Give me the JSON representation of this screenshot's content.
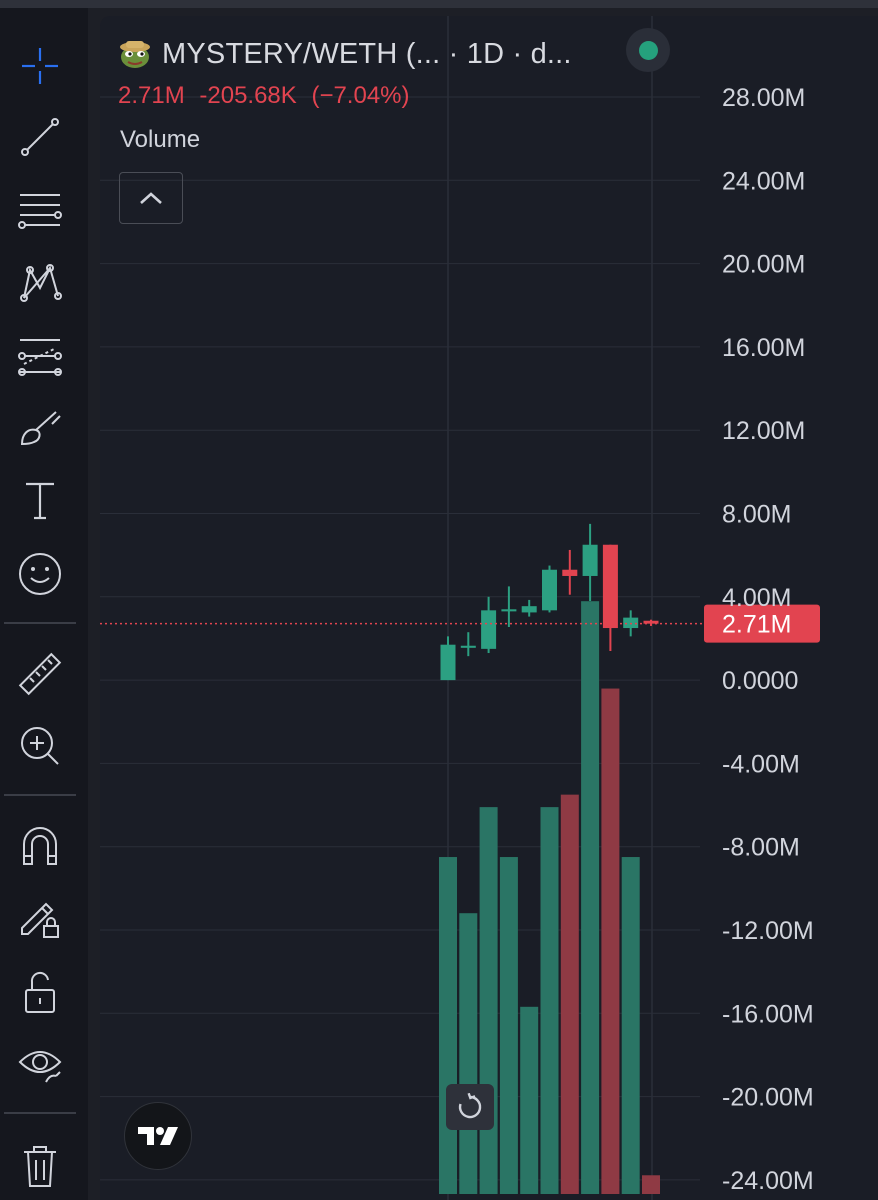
{
  "header": {
    "symbol": "MYSTERY/WETH (... · 1D · d...",
    "last_value": "2.71M",
    "change": "-205.68K",
    "change_pct": "(−7.04%)",
    "indicator": "Volume"
  },
  "toolbar": {
    "tools": [
      "crosshair-icon",
      "trend-line-icon",
      "fib-retracement-icon",
      "pattern-icon",
      "forecast-icon",
      "brush-icon",
      "text-icon",
      "emoji-icon",
      "ruler-icon",
      "zoom-in-icon",
      "magnet-icon",
      "lock-drawing-icon",
      "unlock-icon",
      "eye-icon",
      "trash-icon"
    ]
  },
  "colors": {
    "up": "#2ca082",
    "down": "#e24450",
    "up_volume": "#2a7565",
    "down_volume": "#8f3a44",
    "price_line": "#e24450",
    "grid": "#2a2e39",
    "axis_text": "#d1d4dc",
    "background": "#1a1d26"
  },
  "chart_data": {
    "type": "candlestick",
    "y_axis": {
      "ticks": [
        "28.00M",
        "24.00M",
        "20.00M",
        "16.00M",
        "12.00M",
        "8.00M",
        "4.00M",
        "0.0000",
        "-4.00M",
        "-8.00M",
        "-12.00M",
        "-16.00M",
        "-20.00M",
        "-24.00M"
      ],
      "range": [
        -24,
        28
      ],
      "unit": "M",
      "current_label": "2.71M",
      "current_value": 2.71
    },
    "candles": [
      {
        "open": 0.0,
        "close": 1.7,
        "high": 2.1,
        "low": 0.0
      },
      {
        "open": 1.55,
        "close": 1.65,
        "high": 2.3,
        "low": 1.15
      },
      {
        "open": 1.5,
        "close": 3.35,
        "high": 4.0,
        "low": 1.3
      },
      {
        "open": 3.3,
        "close": 3.4,
        "high": 4.5,
        "low": 2.55
      },
      {
        "open": 3.25,
        "close": 3.55,
        "high": 3.85,
        "low": 3.05
      },
      {
        "open": 3.35,
        "close": 5.3,
        "high": 5.5,
        "low": 3.25
      },
      {
        "open": 5.3,
        "close": 5.0,
        "high": 6.25,
        "low": 4.1
      },
      {
        "open": 5.0,
        "close": 6.5,
        "high": 7.5,
        "low": 3.8
      },
      {
        "open": 6.5,
        "close": 2.5,
        "high": 6.5,
        "low": 1.4
      },
      {
        "open": 2.5,
        "close": 3.0,
        "high": 3.35,
        "low": 2.1
      },
      {
        "open": 2.85,
        "close": 2.71,
        "high": 2.9,
        "low": 2.6
      }
    ],
    "volume": [
      0.54,
      0.45,
      0.62,
      0.54,
      0.3,
      0.62,
      0.64,
      0.95,
      0.81,
      0.54,
      0.03
    ]
  }
}
